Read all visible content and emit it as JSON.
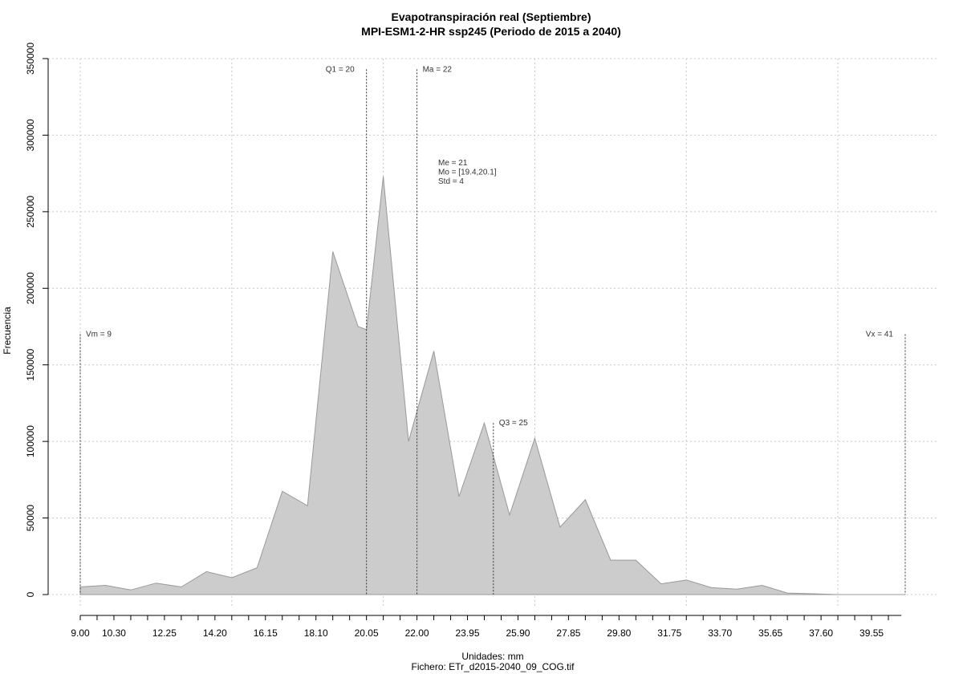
{
  "chart_data": {
    "type": "area",
    "title": "Evapotranspiración real (Septiembre)",
    "subtitle": "MPI-ESM1-2-HR ssp245 (Periodo de 2015 a 2040)",
    "xlabel": "Unidades: mm",
    "ylabel": "Frecuencia",
    "footer": "Fichero: ETr_d2015-2040_09_COG.tif",
    "xlim": [
      9.0,
      40.85
    ],
    "ylim": [
      0,
      350000
    ],
    "grid": true,
    "fill_color": "#cccccc",
    "line_color": "#999999",
    "x_ticks": [
      9.0,
      10.3,
      12.25,
      14.2,
      16.15,
      18.1,
      20.05,
      22.0,
      23.95,
      25.9,
      27.85,
      29.8,
      31.75,
      33.7,
      35.65,
      37.6,
      39.55
    ],
    "x_tick_labels": [
      "9.00",
      "10.30",
      "12.25",
      "14.20",
      "16.15",
      "18.10",
      "20.05",
      "22.00",
      "23.95",
      "25.90",
      "27.85",
      "29.80",
      "31.75",
      "33.70",
      "35.65",
      "37.60",
      "39.55"
    ],
    "x_minor_step": 0.65,
    "y_ticks": [
      0,
      50000,
      100000,
      150000,
      200000,
      250000,
      300000,
      350000
    ],
    "y_tick_labels": [
      "0",
      "50000",
      "100000",
      "150000",
      "200000",
      "250000",
      "300000",
      "350000"
    ],
    "x": [
      9.0,
      9.975,
      10.95,
      11.925,
      12.9,
      13.875,
      14.85,
      15.825,
      16.8,
      17.775,
      18.75,
      19.725,
      20.05,
      20.7,
      21.675,
      22.65,
      23.625,
      24.6,
      25.575,
      26.55,
      27.525,
      28.5,
      29.475,
      30.45,
      31.425,
      32.4,
      33.375,
      34.35,
      35.325,
      36.3,
      37.275,
      38.25,
      39.225,
      40.2,
      40.85
    ],
    "values": [
      5000,
      6000,
      3000,
      7500,
      5000,
      15000,
      11000,
      17500,
      67500,
      58000,
      224000,
      175000,
      173000,
      273000,
      100000,
      159000,
      64000,
      112000,
      52000,
      102000,
      44000,
      62000,
      22500,
      22500,
      7000,
      9500,
      4500,
      3500,
      6000,
      1000,
      500,
      0,
      0,
      0,
      0
    ],
    "reference_lines": [
      {
        "label": "Vm = 9",
        "x": 9.0,
        "top": 170000,
        "label_side": "right"
      },
      {
        "label": "Q1 = 20",
        "x": 20.05,
        "top": 343000,
        "label_side": "left"
      },
      {
        "label": "Ma = 22",
        "x": 22.0,
        "top": 343000,
        "label_side": "right"
      },
      {
        "label": "Q3 = 25",
        "x": 24.95,
        "top": 112000,
        "label_side": "right"
      },
      {
        "label": "Vx = 41",
        "x": 40.85,
        "top": 170000,
        "label_side": "left"
      }
    ],
    "stats_labels": [
      "Me = 21",
      "Mo = [19.4,20.1]",
      "Std = 4"
    ]
  }
}
